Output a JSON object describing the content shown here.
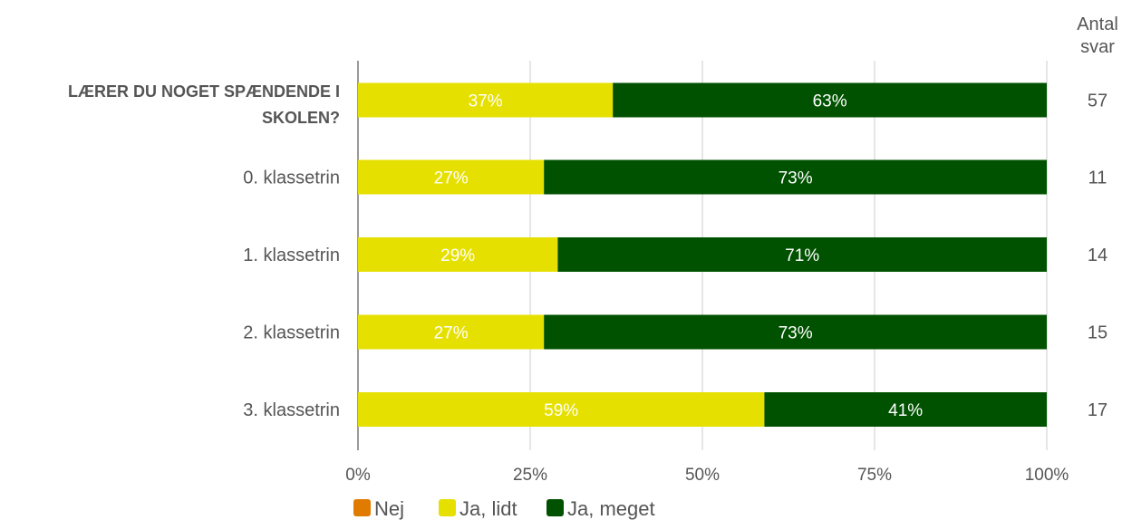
{
  "chart_data": {
    "type": "bar",
    "orientation": "horizontal",
    "stacked": true,
    "categories": [
      "LÆRER DU NOGET SPÆNDENDE I SKOLEN?",
      "0. klassetrin",
      "1. klassetrin",
      "2. klassetrin",
      "3. klassetrin"
    ],
    "series": [
      {
        "name": "Nej",
        "color": "#e07b00",
        "values": [
          0,
          0,
          0,
          0,
          0
        ]
      },
      {
        "name": "Ja, lidt",
        "color": "#e6e000",
        "values": [
          37,
          27,
          29,
          27,
          59
        ]
      },
      {
        "name": "Ja, meget",
        "color": "#005200",
        "values": [
          63,
          73,
          71,
          73,
          41
        ]
      }
    ],
    "data_labels": [
      [
        "",
        "37%",
        "63%"
      ],
      [
        "",
        "27%",
        "73%"
      ],
      [
        "",
        "29%",
        "71%"
      ],
      [
        "",
        "27%",
        "73%"
      ],
      [
        "",
        "59%",
        "41%"
      ]
    ],
    "counts_header": "Antal svar",
    "counts": [
      "57",
      "11",
      "14",
      "15",
      "17"
    ],
    "xlim": [
      0,
      100
    ],
    "x_ticks": [
      "0%",
      "25%",
      "50%",
      "75%",
      "100%"
    ],
    "grid": true,
    "legend_position": "bottom"
  }
}
